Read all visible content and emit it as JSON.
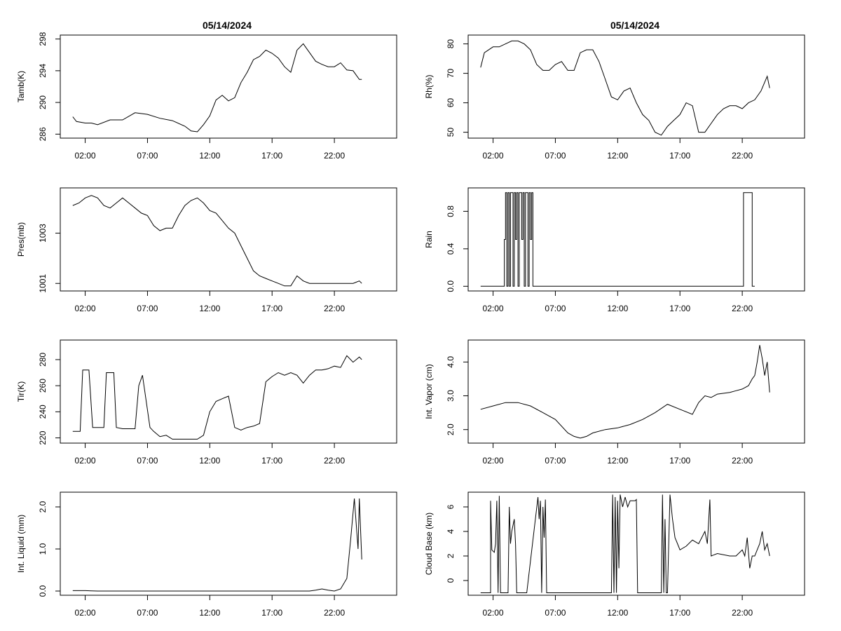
{
  "chart_data": [
    {
      "type": "line",
      "panel": "left",
      "row": 0,
      "title": "05/14/2024",
      "xlabel": "",
      "ylabel": "Tamb(K)",
      "xlim": [
        -1,
        26
      ],
      "ylim": [
        285.5,
        298.5
      ],
      "yticks": [
        286,
        290,
        294,
        298
      ],
      "ytick_labels": [
        "286",
        "290",
        "294",
        "298"
      ],
      "xticks": [
        1,
        6,
        11,
        16,
        21
      ],
      "xtick_labels": [
        "02:00",
        "07:00",
        "12:00",
        "17:00",
        "22:00"
      ],
      "x": [
        0,
        0.3,
        1,
        1.5,
        2,
        3,
        4,
        5,
        6,
        7,
        8,
        9,
        9.5,
        10,
        10.5,
        11,
        11.5,
        12,
        12.5,
        13,
        13.5,
        14,
        14.5,
        15,
        15.5,
        16,
        16.5,
        17,
        17.5,
        18,
        18.5,
        19,
        19.5,
        20,
        20.5,
        21,
        21.5,
        22,
        22.5,
        23,
        23.2
      ],
      "y": [
        288.2,
        287.6,
        287.4,
        287.4,
        287.2,
        287.8,
        287.8,
        288.7,
        288.5,
        288.0,
        287.7,
        287.0,
        286.4,
        286.3,
        287.2,
        288.3,
        290.3,
        290.9,
        290.2,
        290.6,
        292.5,
        293.8,
        295.4,
        295.8,
        296.6,
        296.2,
        295.6,
        294.5,
        293.8,
        296.6,
        297.4,
        296.3,
        295.2,
        294.8,
        294.5,
        294.5,
        295.0,
        294.1,
        294.0,
        292.9,
        292.9
      ]
    },
    {
      "type": "line",
      "panel": "left",
      "row": 1,
      "title": "",
      "xlabel": "",
      "ylabel": "Pres(mb)",
      "xlim": [
        -1,
        26
      ],
      "ylim": [
        1000.7,
        1004.8
      ],
      "yticks": [
        1001,
        1003
      ],
      "ytick_labels": [
        "1001",
        "1003"
      ],
      "xticks": [
        1,
        6,
        11,
        16,
        21
      ],
      "xtick_labels": [
        "02:00",
        "07:00",
        "12:00",
        "17:00",
        "22:00"
      ],
      "x": [
        0,
        0.5,
        1,
        1.5,
        2,
        2.5,
        3,
        3.5,
        4,
        4.5,
        5,
        5.5,
        6,
        6.5,
        7,
        7.5,
        8,
        8.5,
        9,
        9.5,
        10,
        10.5,
        11,
        11.5,
        12,
        12.5,
        13,
        13.5,
        14,
        14.5,
        15,
        15.5,
        16,
        16.5,
        17,
        17.5,
        18,
        18.5,
        19,
        19.5,
        20,
        20.5,
        21,
        21.5,
        22,
        22.5,
        23,
        23.2
      ],
      "y": [
        1004.1,
        1004.2,
        1004.4,
        1004.5,
        1004.4,
        1004.1,
        1004.0,
        1004.2,
        1004.4,
        1004.2,
        1004.0,
        1003.8,
        1003.7,
        1003.3,
        1003.1,
        1003.2,
        1003.2,
        1003.7,
        1004.1,
        1004.3,
        1004.4,
        1004.2,
        1003.9,
        1003.8,
        1003.5,
        1003.2,
        1003.0,
        1002.5,
        1002.0,
        1001.5,
        1001.3,
        1001.2,
        1001.1,
        1001.0,
        1000.9,
        1000.9,
        1001.3,
        1001.1,
        1001.0,
        1001.0,
        1001.0,
        1001.0,
        1001.0,
        1001.0,
        1001.0,
        1001.0,
        1001.1,
        1001.0
      ]
    },
    {
      "type": "line",
      "panel": "left",
      "row": 2,
      "title": "",
      "xlabel": "",
      "ylabel": "Tir(K)",
      "xlim": [
        -1,
        26
      ],
      "ylim": [
        216,
        295
      ],
      "yticks": [
        220,
        240,
        260,
        280
      ],
      "ytick_labels": [
        "220",
        "240",
        "260",
        "280"
      ],
      "xticks": [
        1,
        6,
        11,
        16,
        21
      ],
      "xtick_labels": [
        "02:00",
        "07:00",
        "12:00",
        "17:00",
        "22:00"
      ],
      "x": [
        0,
        0.6,
        0.8,
        1.3,
        1.6,
        2,
        2.5,
        2.7,
        3.3,
        3.5,
        4,
        5,
        5.3,
        5.6,
        6.2,
        6.5,
        7,
        7.5,
        8,
        9,
        10,
        10.5,
        11,
        11.5,
        12,
        12.5,
        13,
        13.5,
        14,
        14.5,
        15,
        15.5,
        16,
        16.5,
        17,
        17.5,
        18,
        18.5,
        19,
        19.5,
        20,
        20.5,
        21,
        21.5,
        22,
        22.5,
        23,
        23.2
      ],
      "y": [
        225,
        225,
        272,
        272,
        228,
        228,
        228,
        270,
        270,
        228,
        227,
        227,
        260,
        268,
        228,
        225,
        221,
        222,
        219,
        219,
        219,
        222,
        240,
        248,
        250,
        252,
        228,
        226,
        228,
        229,
        231,
        263,
        267,
        270,
        268,
        270,
        268,
        262,
        268,
        272,
        272,
        273,
        275,
        274,
        283,
        278,
        282,
        280
      ]
    },
    {
      "type": "line",
      "panel": "left",
      "row": 3,
      "title": "",
      "xlabel": "",
      "ylabel": "Int. Liquid (mm)",
      "xlim": [
        -1,
        26
      ],
      "ylim": [
        -0.1,
        2.35
      ],
      "yticks": [
        0.0,
        1.0,
        2.0
      ],
      "ytick_labels": [
        "0.0",
        "1.0",
        "2.0"
      ],
      "xticks": [
        1,
        6,
        11,
        16,
        21
      ],
      "xtick_labels": [
        "02:00",
        "07:00",
        "12:00",
        "17:00",
        "22:00"
      ],
      "x": [
        0,
        1,
        2,
        5,
        10,
        15,
        19,
        19.5,
        20,
        20.5,
        21,
        21.5,
        22,
        22.3,
        22.6,
        22.9,
        23.0,
        23.2
      ],
      "y": [
        0.01,
        0.01,
        0.0,
        0.0,
        0.0,
        0.0,
        0.0,
        0.02,
        0.05,
        0.02,
        0.0,
        0.05,
        0.3,
        1.2,
        2.2,
        1.0,
        2.2,
        0.75
      ]
    },
    {
      "type": "line",
      "panel": "right",
      "row": 0,
      "title": "05/14/2024",
      "xlabel": "",
      "ylabel": "Rh(%)",
      "xlim": [
        -1,
        26
      ],
      "ylim": [
        48,
        83
      ],
      "yticks": [
        50,
        60,
        70,
        80
      ],
      "ytick_labels": [
        "50",
        "60",
        "70",
        "80"
      ],
      "xticks": [
        1,
        6,
        11,
        16,
        21
      ],
      "xtick_labels": [
        "02:00",
        "07:00",
        "12:00",
        "17:00",
        "22:00"
      ],
      "x": [
        0,
        0.3,
        1,
        1.5,
        2,
        2.5,
        3,
        3.5,
        4,
        4.5,
        5,
        5.5,
        6,
        6.5,
        7,
        7.5,
        8,
        8.5,
        9,
        9.5,
        10,
        10.5,
        11,
        11.5,
        12,
        12.5,
        13,
        13.5,
        14,
        14.5,
        15,
        15.5,
        16,
        16.5,
        17,
        17.5,
        18,
        18.5,
        19,
        19.5,
        20,
        20.5,
        21,
        21.5,
        22,
        22.5,
        23,
        23.2
      ],
      "y": [
        72,
        77,
        79,
        79,
        80,
        81,
        81,
        80,
        78,
        73,
        71,
        71,
        73,
        74,
        71,
        71,
        77,
        78,
        78,
        74,
        68,
        62,
        61,
        64,
        65,
        60,
        56,
        54,
        50,
        49,
        52,
        54,
        56,
        60,
        59,
        50,
        50,
        53,
        56,
        58,
        59,
        59,
        58,
        60,
        61,
        64,
        69,
        65
      ]
    },
    {
      "type": "line",
      "panel": "right",
      "row": 1,
      "title": "",
      "xlabel": "",
      "ylabel": "Rain",
      "xlim": [
        -1,
        26
      ],
      "ylim": [
        -0.05,
        1.05
      ],
      "yticks": [
        0.0,
        0.4,
        0.8
      ],
      "ytick_labels": [
        "0.0",
        "0.4",
        "0.8"
      ],
      "xticks": [
        1,
        6,
        11,
        16,
        21
      ],
      "xtick_labels": [
        "02:00",
        "07:00",
        "12:00",
        "17:00",
        "22:00"
      ],
      "x": [
        0,
        1.9,
        1.9,
        2.0,
        2.0,
        2.1,
        2.1,
        2.2,
        2.2,
        2.3,
        2.3,
        2.4,
        2.4,
        2.6,
        2.6,
        2.7,
        2.7,
        2.8,
        2.8,
        2.9,
        2.9,
        3.0,
        3.0,
        3.1,
        3.1,
        3.3,
        3.3,
        3.4,
        3.4,
        3.5,
        3.5,
        3.6,
        3.6,
        3.8,
        3.8,
        3.9,
        3.9,
        4.0,
        4.0,
        4.1,
        4.1,
        4.2,
        4.2,
        4.3,
        4.3,
        21.1,
        21.1,
        21.8,
        21.8,
        22.0
      ],
      "y": [
        0,
        0,
        0.5,
        0.5,
        1,
        1,
        0,
        0,
        1,
        1,
        0,
        0,
        1,
        1,
        0,
        0,
        1,
        1,
        0.5,
        0.5,
        1,
        1,
        0,
        0,
        1,
        1,
        0.5,
        0.5,
        1,
        1,
        0,
        0,
        1,
        1,
        0,
        0,
        1,
        1,
        0.5,
        0.5,
        1,
        1,
        0,
        0,
        0,
        0,
        1,
        1,
        0,
        0
      ]
    },
    {
      "type": "line",
      "panel": "right",
      "row": 2,
      "title": "",
      "xlabel": "",
      "ylabel": "Int. Vapor (cm)",
      "xlim": [
        -1,
        26
      ],
      "ylim": [
        1.6,
        4.65
      ],
      "yticks": [
        2.0,
        3.0,
        4.0
      ],
      "ytick_labels": [
        "2.0",
        "3.0",
        "4.0"
      ],
      "xticks": [
        1,
        6,
        11,
        16,
        21
      ],
      "xtick_labels": [
        "02:00",
        "07:00",
        "12:00",
        "17:00",
        "22:00"
      ],
      "x": [
        0,
        1,
        2,
        3,
        4,
        5,
        6,
        7,
        7.5,
        8,
        8.5,
        9,
        10,
        11,
        12,
        13,
        14,
        15,
        16,
        17,
        17.5,
        18,
        18.5,
        19,
        20,
        20.5,
        21,
        21.5,
        21.8,
        22.0,
        22.2,
        22.4,
        22.6,
        22.8,
        23.0,
        23.2
      ],
      "y": [
        2.6,
        2.7,
        2.8,
        2.8,
        2.7,
        2.5,
        2.3,
        1.9,
        1.8,
        1.75,
        1.8,
        1.9,
        2.0,
        2.05,
        2.15,
        2.3,
        2.5,
        2.75,
        2.6,
        2.45,
        2.8,
        3.0,
        2.95,
        3.05,
        3.1,
        3.15,
        3.2,
        3.3,
        3.5,
        3.6,
        4.0,
        4.5,
        4.1,
        3.6,
        4.0,
        3.1
      ]
    },
    {
      "type": "line",
      "panel": "right",
      "row": 3,
      "title": "",
      "xlabel": "",
      "ylabel": "Cloud Base (km)",
      "xlim": [
        -1,
        26
      ],
      "ylim": [
        -1.2,
        7.2
      ],
      "yticks": [
        0,
        2,
        4,
        6
      ],
      "ytick_labels": [
        "0",
        "2",
        "4",
        "6"
      ],
      "xticks": [
        1,
        6,
        11,
        16,
        21
      ],
      "xtick_labels": [
        "02:00",
        "07:00",
        "12:00",
        "17:00",
        "22:00"
      ],
      "x": [
        0,
        0.8,
        0.8,
        0.9,
        1.1,
        1.2,
        1.3,
        1.4,
        1.5,
        1.6,
        1.7,
        1.8,
        1.9,
        2.0,
        2.1,
        2.2,
        2.3,
        2.4,
        2.5,
        2.7,
        2.8,
        2.9,
        3.0,
        3.1,
        3.2,
        3.3,
        3.4,
        3.5,
        3.6,
        3.7,
        4.6,
        4.7,
        4.8,
        4.9,
        5.0,
        5.1,
        5.2,
        5.3,
        5.4,
        5.5,
        5.6,
        5.7,
        10.5,
        10.6,
        10.7,
        10.8,
        10.9,
        11.0,
        11.1,
        11.2,
        11.4,
        11.6,
        11.8,
        12.0,
        12.2,
        12.4,
        12.5,
        12.6,
        14.5,
        14.6,
        14.7,
        14.8,
        14.9,
        15.0,
        15.2,
        15.4,
        15.6,
        15.8,
        16,
        16.5,
        17,
        17.5,
        18,
        18.2,
        18.4,
        18.5,
        19,
        20,
        20.5,
        21,
        21.2,
        21.4,
        21.6,
        21.8,
        22,
        22.2,
        22.4,
        22.6,
        22.8,
        23.0,
        23.2
      ],
      "y": [
        -1,
        -1,
        6.5,
        2.5,
        2.3,
        3.0,
        6.5,
        -1,
        6.9,
        -1,
        -1,
        -1,
        -1,
        -1,
        -1,
        -1,
        6.0,
        3.0,
        4.0,
        5.0,
        3.0,
        -1,
        -1,
        -1,
        -1,
        -1,
        -1,
        -1,
        -1,
        -1,
        6.8,
        5.0,
        6.5,
        -1,
        6.0,
        3.5,
        6.6,
        -1,
        -1,
        -1,
        -1,
        -1,
        -1,
        7.0,
        -1,
        6.8,
        -1,
        6.5,
        1.0,
        7.0,
        6.0,
        6.8,
        6.0,
        6.5,
        6.5,
        6.5,
        6.6,
        -1,
        -1,
        7.0,
        -1,
        5.0,
        -1,
        -1,
        7.0,
        5.0,
        3.5,
        3.0,
        2.5,
        2.8,
        3.3,
        3.0,
        4.0,
        3.0,
        6.6,
        2.0,
        2.2,
        2.0,
        2.0,
        2.5,
        2.0,
        3.5,
        1.0,
        2.0,
        2.0,
        2.5,
        3.0,
        4.0,
        2.5,
        3.0,
        2.0
      ]
    }
  ]
}
